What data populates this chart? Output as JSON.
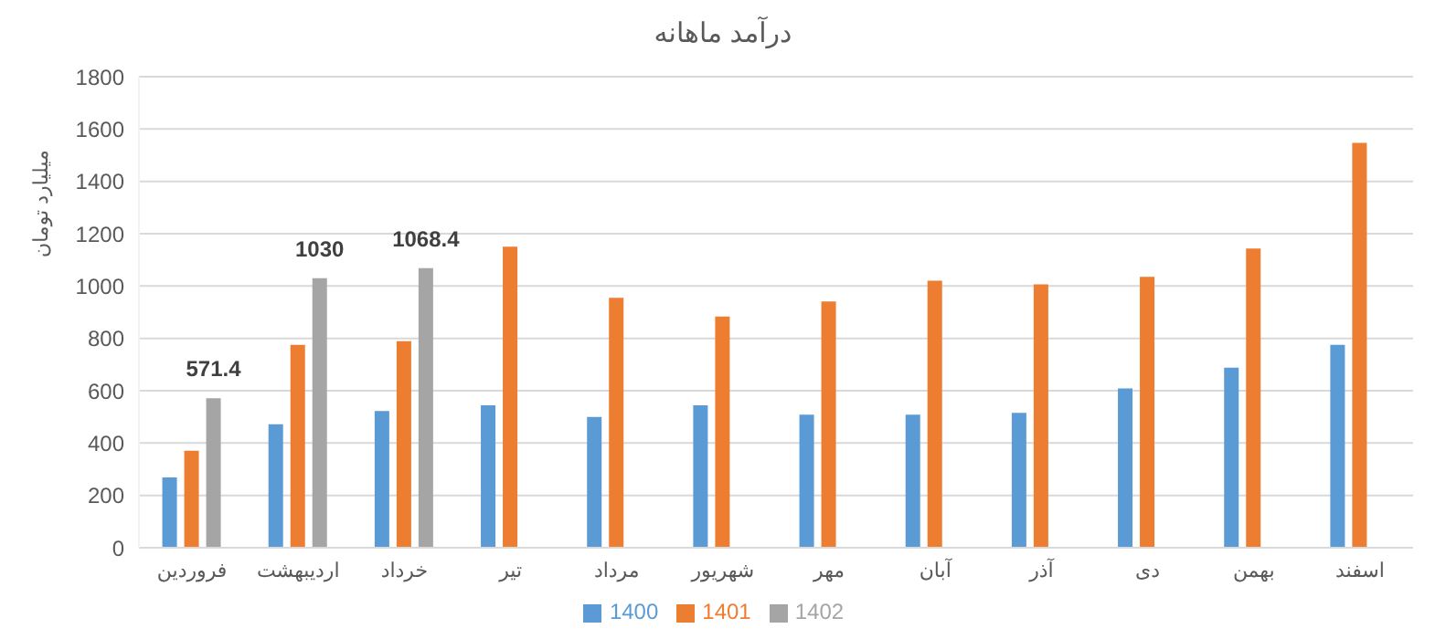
{
  "chart_data": {
    "type": "bar",
    "title": "درآمد ماهانه",
    "ylabel": "میلیارد تومان",
    "categories": [
      "فروردین",
      "اردیبهشت",
      "خرداد",
      "تیر",
      "مرداد",
      "شهریور",
      "مهر",
      "آبان",
      "آذر",
      "دی",
      "بهمن",
      "اسفند"
    ],
    "series": [
      {
        "name": "1400",
        "color": "#5b9bd5",
        "values": [
          269,
          472,
          522,
          544,
          500,
          544,
          508,
          508,
          515,
          609,
          688,
          775
        ]
      },
      {
        "name": "1401",
        "color": "#ed7d31",
        "values": [
          371,
          775,
          789,
          1150,
          955,
          883,
          941,
          1020,
          1006,
          1035,
          1143,
          1547
        ]
      },
      {
        "name": "1402",
        "color": "#a5a5a5",
        "values": [
          571.4,
          1030,
          1068.4,
          null,
          null,
          null,
          null,
          null,
          null,
          null,
          null,
          null
        ],
        "value_labels": [
          "571.4",
          "1030",
          "1068.4",
          null,
          null,
          null,
          null,
          null,
          null,
          null,
          null,
          null
        ]
      }
    ],
    "ylim": [
      0,
      1800
    ],
    "yticks": [
      0,
      200,
      400,
      600,
      800,
      1000,
      1200,
      1400,
      1600,
      1800
    ],
    "grid": "y",
    "legend": "bottom"
  }
}
